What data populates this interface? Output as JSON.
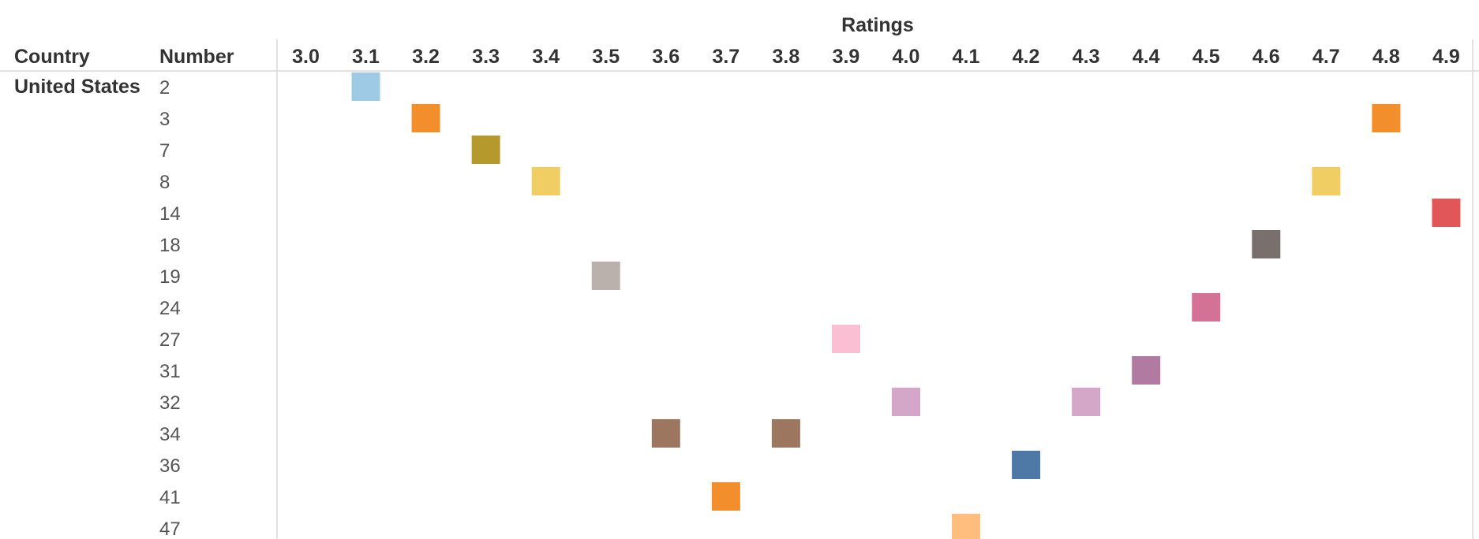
{
  "chart_data": {
    "type": "heatmap",
    "title": "",
    "column_header": "Ratings",
    "row_headers": [
      "Country",
      "Number"
    ],
    "country": "United States",
    "columns": [
      "3.0",
      "3.1",
      "3.2",
      "3.3",
      "3.4",
      "3.5",
      "3.6",
      "3.7",
      "3.8",
      "3.9",
      "4.0",
      "4.1",
      "4.2",
      "4.3",
      "4.4",
      "4.5",
      "4.6",
      "4.7",
      "4.8",
      "4.9"
    ],
    "rows": [
      "2",
      "3",
      "7",
      "8",
      "14",
      "18",
      "19",
      "24",
      "27",
      "31",
      "32",
      "34",
      "36",
      "41",
      "47"
    ],
    "cells": [
      {
        "row": "2",
        "rating": "3.1",
        "color": "#9fcae6"
      },
      {
        "row": "3",
        "rating": "3.2",
        "color": "#f28e2b"
      },
      {
        "row": "3",
        "rating": "4.8",
        "color": "#f28e2b"
      },
      {
        "row": "7",
        "rating": "3.3",
        "color": "#b6992d"
      },
      {
        "row": "8",
        "rating": "3.4",
        "color": "#f1ce63"
      },
      {
        "row": "8",
        "rating": "4.7",
        "color": "#f1ce63"
      },
      {
        "row": "14",
        "rating": "4.9",
        "color": "#e15759"
      },
      {
        "row": "18",
        "rating": "4.6",
        "color": "#79706e"
      },
      {
        "row": "19",
        "rating": "3.5",
        "color": "#bab0ac"
      },
      {
        "row": "24",
        "rating": "4.5",
        "color": "#d37295"
      },
      {
        "row": "27",
        "rating": "3.9",
        "color": "#fabfd2"
      },
      {
        "row": "31",
        "rating": "4.4",
        "color": "#b07aa1"
      },
      {
        "row": "32",
        "rating": "4.0",
        "color": "#d4a6c8"
      },
      {
        "row": "32",
        "rating": "4.3",
        "color": "#d4a6c8"
      },
      {
        "row": "34",
        "rating": "3.6",
        "color": "#9d7660"
      },
      {
        "row": "34",
        "rating": "3.8",
        "color": "#9d7660"
      },
      {
        "row": "36",
        "rating": "4.2",
        "color": "#4e79a7"
      },
      {
        "row": "41",
        "rating": "3.7",
        "color": "#f28e2b"
      },
      {
        "row": "47",
        "rating": "4.1",
        "color": "#ffbe7d"
      }
    ]
  }
}
